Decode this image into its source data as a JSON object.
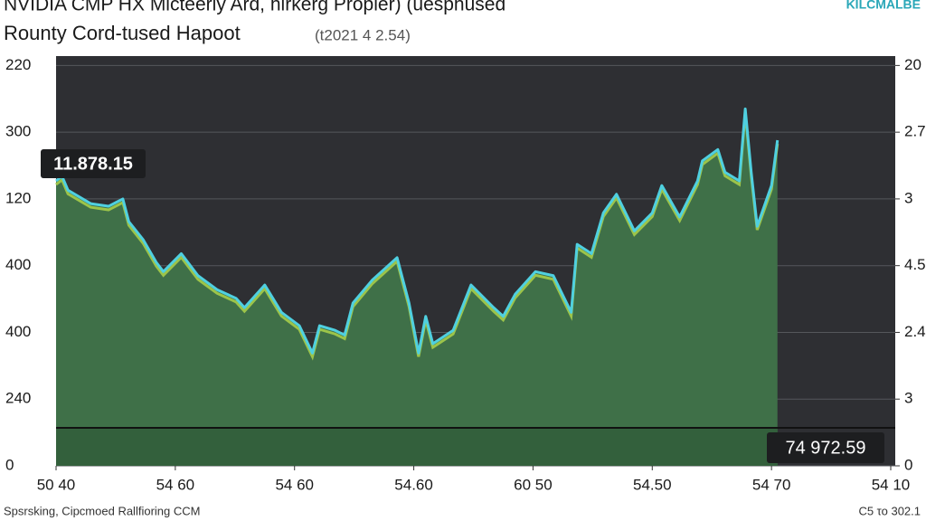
{
  "chart_data": {
    "type": "area",
    "title": "NVIDIA CMP HX Micteerly Ard, hirkerg Propler) (uesphused",
    "subtitle": "Rounty Cord-tused Hapoot",
    "subtitle_date": "(t2021 4 2.54)",
    "brand": "KILCMALBE",
    "footer_left": "Spsrsking, Cipcmoed Rallfioring CCM",
    "footer_right": "C5 το 302.1",
    "annotations": [
      "11.878.15",
      "74 972.59"
    ],
    "x": [
      0,
      0.05,
      0.1,
      0.29,
      0.44,
      0.56,
      0.61,
      0.73,
      0.84,
      0.9,
      1.05,
      1.19,
      1.35,
      1.51,
      1.58,
      1.75,
      1.89,
      2.04,
      2.15,
      2.21,
      2.34,
      2.42,
      2.49,
      2.65,
      2.86,
      2.96,
      3.04,
      3.1,
      3.16,
      3.33,
      3.48,
      3.67,
      3.75,
      3.85,
      4.02,
      4.17,
      4.32,
      4.37,
      4.49,
      4.59,
      4.7,
      4.85,
      5.0,
      5.08,
      5.23,
      5.38,
      5.42,
      5.55,
      5.61,
      5.73,
      5.78,
      5.83,
      5.88,
      6.0,
      6.05
    ],
    "values": [
      4.27,
      4.34,
      4.13,
      3.93,
      3.89,
      4.0,
      3.66,
      3.39,
      3.05,
      2.91,
      3.18,
      2.85,
      2.64,
      2.51,
      2.37,
      2.71,
      2.3,
      2.1,
      1.69,
      2.1,
      2.03,
      1.96,
      2.44,
      2.78,
      3.12,
      2.44,
      1.69,
      2.24,
      1.83,
      2.03,
      2.71,
      2.37,
      2.24,
      2.57,
      2.91,
      2.85,
      2.3,
      3.32,
      3.18,
      3.79,
      4.07,
      3.52,
      3.79,
      4.2,
      3.73,
      4.27,
      4.57,
      4.74,
      4.4,
      4.27,
      5.35,
      4.4,
      3.59,
      4.2,
      4.88
    ],
    "color": "#4fd0e0",
    "fill_color": "#3f7048",
    "shadow_color": "#9cc44a",
    "xlim": [
      0,
      7
    ],
    "xticks": [
      {
        "value": 0,
        "label": "50 40"
      },
      {
        "value": 1,
        "label": "54 60"
      },
      {
        "value": 2,
        "label": "54 60"
      },
      {
        "value": 3,
        "label": "54.60"
      },
      {
        "value": 4,
        "label": "60 50"
      },
      {
        "value": 5,
        "label": "54.50"
      },
      {
        "value": 6,
        "label": "54 70"
      },
      {
        "value": 7,
        "label": "54 10"
      }
    ],
    "ylim": [
      0,
      6.1
    ],
    "yticks": [
      0,
      {
        "value": 1,
        "label": "240"
      },
      {
        "value": 2,
        "label": "400"
      },
      {
        "value": 3,
        "label": "400"
      },
      {
        "value": 4,
        "label": "120"
      },
      {
        "value": 5,
        "label": "300"
      },
      {
        "value": 6,
        "label": "220"
      }
    ],
    "y2lim": [
      0,
      6.1
    ],
    "y2ticks": [
      0,
      {
        "value": 1,
        "label": "3"
      },
      {
        "value": 2,
        "label": "2.4"
      },
      {
        "value": 3,
        "label": "4.5"
      },
      {
        "value": 4,
        "label": "3"
      },
      {
        "value": 5,
        "label": "2.7"
      },
      {
        "value": 6,
        "label": "20"
      }
    ],
    "grid": true
  }
}
